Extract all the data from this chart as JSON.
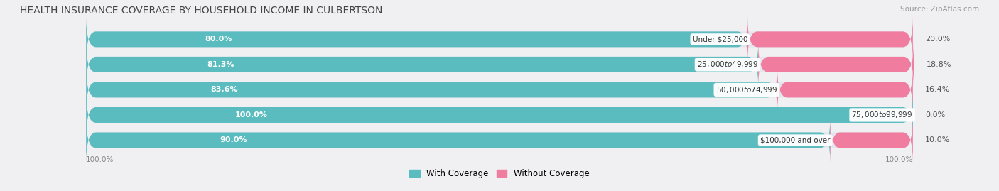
{
  "title": "HEALTH INSURANCE COVERAGE BY HOUSEHOLD INCOME IN CULBERTSON",
  "source": "Source: ZipAtlas.com",
  "categories": [
    "Under $25,000",
    "$25,000 to $49,999",
    "$50,000 to $74,999",
    "$75,000 to $99,999",
    "$100,000 and over"
  ],
  "with_coverage": [
    80.0,
    81.3,
    83.6,
    100.0,
    90.0
  ],
  "without_coverage": [
    20.0,
    18.8,
    16.4,
    0.0,
    10.0
  ],
  "color_coverage": "#5bbcbf",
  "color_no_coverage": "#f07ca0",
  "bg_color": "#f0f0f2",
  "bar_bg_color": "#e4e4ec",
  "title_fontsize": 10,
  "label_fontsize": 8.0,
  "bar_height": 0.62,
  "total_width": 100.0,
  "legend_coverage": "With Coverage",
  "legend_no_coverage": "Without Coverage",
  "x_left_label": "100.0%",
  "x_right_label": "100.0%"
}
